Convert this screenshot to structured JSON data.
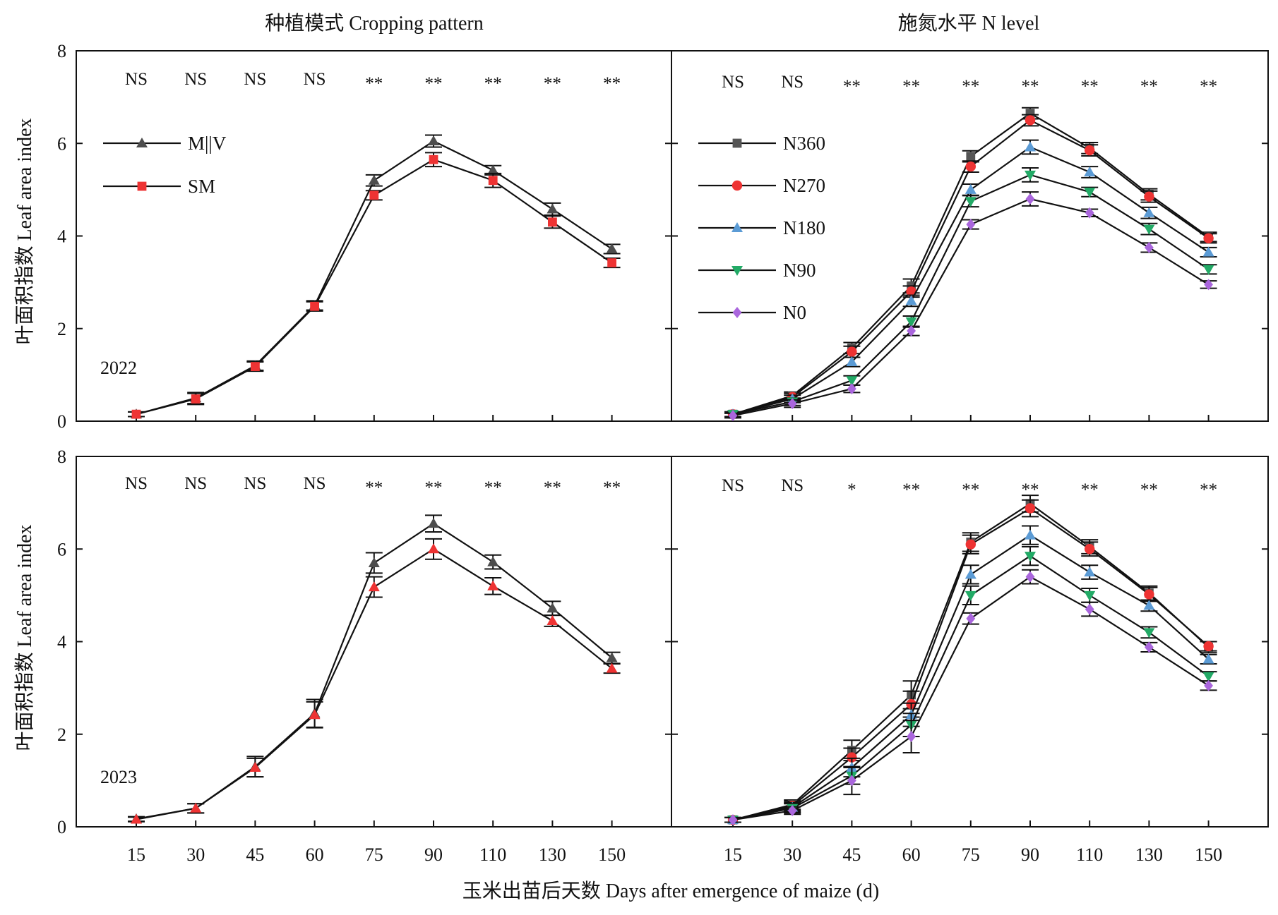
{
  "figure": {
    "column_titles": [
      "种植模式 Cropping pattern",
      "施氮水平 N level"
    ],
    "ylabel": "叶面积指数 Leaf area index",
    "xlabel": "玉米出苗后天数 Days after emergence of maize (d)",
    "years": [
      "2022",
      "2023"
    ]
  },
  "chart_data": [
    {
      "type": "line",
      "panel": "2022-cropping-pattern",
      "year": "2022",
      "categories": [
        "15",
        "30",
        "45",
        "60",
        "75",
        "90",
        "110",
        "130",
        "150"
      ],
      "ylim": [
        0,
        8
      ],
      "yticks": [
        0,
        2,
        4,
        6,
        8
      ],
      "significance": [
        "NS",
        "NS",
        "NS",
        "NS",
        "**",
        "**",
        "**",
        "**",
        "**"
      ],
      "legend_position": "top-left",
      "series": [
        {
          "name": "M||V",
          "marker": "triangle",
          "color": "#4d4d4d",
          "values": [
            0.15,
            0.5,
            1.2,
            2.5,
            5.2,
            6.05,
            5.42,
            4.58,
            3.72
          ],
          "errors": [
            0.05,
            0.12,
            0.1,
            0.1,
            0.12,
            0.13,
            0.1,
            0.13,
            0.1
          ]
        },
        {
          "name": "SM",
          "marker": "square",
          "color": "#ee3333",
          "values": [
            0.15,
            0.48,
            1.18,
            2.48,
            4.88,
            5.65,
            5.2,
            4.3,
            3.42
          ],
          "errors": [
            0.05,
            0.12,
            0.1,
            0.1,
            0.1,
            0.15,
            0.15,
            0.13,
            0.1
          ]
        }
      ]
    },
    {
      "type": "line",
      "panel": "2022-n-level",
      "year": "2022",
      "categories": [
        "15",
        "30",
        "45",
        "60",
        "75",
        "90",
        "110",
        "130",
        "150"
      ],
      "ylim": [
        0,
        8
      ],
      "yticks": [
        0,
        2,
        4,
        6,
        8
      ],
      "significance": [
        "NS",
        "NS",
        "**",
        "**",
        "**",
        "**",
        "**",
        "**",
        "**"
      ],
      "legend_position": "top-left",
      "series": [
        {
          "name": "N360",
          "marker": "square",
          "color": "#555555",
          "values": [
            0.15,
            0.55,
            1.58,
            2.92,
            5.72,
            6.65,
            5.9,
            4.9,
            3.98
          ],
          "errors": [
            0.05,
            0.08,
            0.12,
            0.15,
            0.12,
            0.12,
            0.12,
            0.12,
            0.1
          ]
        },
        {
          "name": "N270",
          "marker": "circle",
          "color": "#ee3333",
          "values": [
            0.15,
            0.52,
            1.5,
            2.8,
            5.5,
            6.5,
            5.85,
            4.85,
            3.95
          ],
          "errors": [
            0.05,
            0.08,
            0.12,
            0.12,
            0.12,
            0.12,
            0.12,
            0.12,
            0.1
          ]
        },
        {
          "name": "N180",
          "marker": "triangle",
          "color": "#5b9bd5",
          "values": [
            0.15,
            0.48,
            1.28,
            2.6,
            5.0,
            5.92,
            5.38,
            4.5,
            3.65
          ],
          "errors": [
            0.05,
            0.08,
            0.1,
            0.12,
            0.12,
            0.15,
            0.12,
            0.12,
            0.1
          ]
        },
        {
          "name": "N90",
          "marker": "triangle-down",
          "color": "#22aa66",
          "values": [
            0.15,
            0.42,
            0.88,
            2.15,
            4.75,
            5.32,
            4.95,
            4.15,
            3.28
          ],
          "errors": [
            0.05,
            0.08,
            0.1,
            0.12,
            0.12,
            0.15,
            0.1,
            0.12,
            0.1
          ]
        },
        {
          "name": "N0",
          "marker": "diamond",
          "color": "#aa66dd",
          "values": [
            0.12,
            0.38,
            0.7,
            1.95,
            4.25,
            4.8,
            4.5,
            3.75,
            2.95
          ],
          "errors": [
            0.05,
            0.08,
            0.08,
            0.1,
            0.1,
            0.15,
            0.08,
            0.1,
            0.08
          ]
        }
      ]
    },
    {
      "type": "line",
      "panel": "2023-cropping-pattern",
      "year": "2023",
      "categories": [
        "15",
        "30",
        "45",
        "60",
        "75",
        "90",
        "110",
        "130",
        "150"
      ],
      "ylim": [
        0,
        8
      ],
      "yticks": [
        0,
        2,
        4,
        6,
        8
      ],
      "significance": [
        "NS",
        "NS",
        "NS",
        "NS",
        "**",
        "**",
        "**",
        "**",
        "**"
      ],
      "series": [
        {
          "name": "M||V",
          "marker": "triangle",
          "color": "#4d4d4d",
          "values": [
            0.17,
            0.4,
            1.3,
            2.45,
            5.7,
            6.55,
            5.72,
            4.72,
            3.65
          ],
          "errors": [
            0.05,
            0.1,
            0.22,
            0.3,
            0.22,
            0.18,
            0.15,
            0.15,
            0.12
          ]
        },
        {
          "name": "SM",
          "marker": "triangle",
          "color": "#ee3333",
          "values": [
            0.16,
            0.4,
            1.28,
            2.42,
            5.18,
            6.0,
            5.2,
            4.45,
            3.42
          ],
          "errors": [
            0.05,
            0.1,
            0.2,
            0.28,
            0.22,
            0.22,
            0.18,
            0.12,
            0.1
          ]
        }
      ]
    },
    {
      "type": "line",
      "panel": "2023-n-level",
      "year": "2023",
      "categories": [
        "15",
        "30",
        "45",
        "60",
        "75",
        "90",
        "110",
        "130",
        "150"
      ],
      "ylim": [
        0,
        8
      ],
      "yticks": [
        0,
        2,
        4,
        6,
        8
      ],
      "significance": [
        "NS",
        "NS",
        "*",
        "**",
        "**",
        "**",
        "**",
        "**",
        "**"
      ],
      "series": [
        {
          "name": "N360",
          "marker": "square",
          "color": "#555555",
          "values": [
            0.15,
            0.48,
            1.65,
            2.85,
            6.15,
            6.98,
            6.05,
            5.05,
            3.88
          ],
          "errors": [
            0.05,
            0.1,
            0.22,
            0.3,
            0.2,
            0.18,
            0.15,
            0.15,
            0.12
          ]
        },
        {
          "name": "N270",
          "marker": "circle",
          "color": "#ee3333",
          "values": [
            0.15,
            0.45,
            1.5,
            2.65,
            6.1,
            6.88,
            6.0,
            5.02,
            3.9
          ],
          "errors": [
            0.05,
            0.1,
            0.2,
            0.28,
            0.2,
            0.18,
            0.15,
            0.15,
            0.1
          ]
        },
        {
          "name": "N180",
          "marker": "triangle",
          "color": "#5b9bd5",
          "values": [
            0.15,
            0.42,
            1.28,
            2.42,
            5.45,
            6.3,
            5.5,
            4.78,
            3.62
          ],
          "errors": [
            0.05,
            0.1,
            0.2,
            0.25,
            0.2,
            0.2,
            0.15,
            0.12,
            0.1
          ]
        },
        {
          "name": "N90",
          "marker": "triangle-down",
          "color": "#22aa66",
          "values": [
            0.15,
            0.4,
            1.1,
            2.2,
            5.0,
            5.85,
            5.0,
            4.2,
            3.25
          ],
          "errors": [
            0.05,
            0.1,
            0.18,
            0.25,
            0.2,
            0.2,
            0.15,
            0.12,
            0.1
          ]
        },
        {
          "name": "N0",
          "marker": "diamond",
          "color": "#aa66dd",
          "values": [
            0.15,
            0.35,
            1.0,
            1.95,
            4.5,
            5.4,
            4.7,
            3.88,
            3.05
          ],
          "errors": [
            0.05,
            0.08,
            0.3,
            0.35,
            0.12,
            0.15,
            0.15,
            0.1,
            0.1
          ]
        }
      ]
    }
  ]
}
